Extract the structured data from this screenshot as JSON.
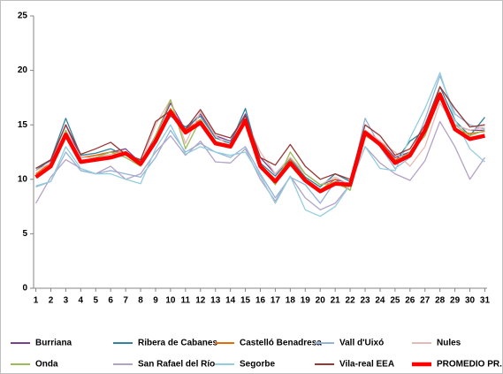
{
  "chart_data": {
    "type": "line",
    "x": [
      1,
      2,
      3,
      4,
      5,
      6,
      7,
      8,
      9,
      10,
      11,
      12,
      13,
      14,
      15,
      16,
      17,
      18,
      19,
      20,
      21,
      22,
      23,
      24,
      25,
      26,
      27,
      28,
      29,
      30,
      31
    ],
    "xlim": [
      0.85,
      31.15
    ],
    "xticks": [
      1,
      2,
      3,
      4,
      5,
      6,
      7,
      8,
      9,
      10,
      11,
      12,
      13,
      14,
      15,
      16,
      17,
      18,
      19,
      20,
      21,
      22,
      23,
      24,
      25,
      26,
      27,
      28,
      29,
      30,
      31
    ],
    "ylim": [
      0,
      25
    ],
    "yticks": [
      0,
      5,
      10,
      15,
      20,
      25
    ],
    "grid": false,
    "legend": "bottom",
    "series": [
      {
        "name": "Burriana",
        "color": "#7b3f8f",
        "width": 1.3,
        "values": [
          11.0,
          11.7,
          15.0,
          12.0,
          12.2,
          12.5,
          12.8,
          11.5,
          14.0,
          17.0,
          14.5,
          16.0,
          14.0,
          13.5,
          16.0,
          12.0,
          10.5,
          12.0,
          10.5,
          9.5,
          10.0,
          9.6,
          14.5,
          13.5,
          12.0,
          12.5,
          14.5,
          18.0,
          15.0,
          14.5,
          14.5
        ]
      },
      {
        "name": "Ribera de Cabanes",
        "color": "#31849b",
        "width": 1.3,
        "values": [
          10.8,
          11.8,
          15.6,
          12.2,
          12.4,
          12.8,
          12.2,
          11.7,
          13.6,
          15.8,
          14.8,
          15.8,
          13.8,
          13.3,
          16.5,
          11.5,
          10.3,
          11.9,
          10.2,
          9.3,
          10.5,
          9.8,
          14.0,
          13.5,
          11.6,
          13.5,
          14.5,
          18.5,
          15.4,
          14.0,
          15.7
        ]
      },
      {
        "name": "Castelló Benadresa",
        "color": "#e46c0a",
        "width": 1.3,
        "values": [
          10.5,
          11.5,
          14.3,
          12.0,
          12.2,
          12.5,
          12.5,
          11.6,
          13.8,
          16.5,
          14.5,
          15.5,
          13.5,
          13.0,
          15.5,
          11.3,
          10.0,
          11.8,
          10.0,
          9.0,
          10.0,
          9.0,
          14.5,
          13.5,
          11.8,
          12.4,
          14.0,
          18.0,
          14.5,
          14.2,
          14.4
        ]
      },
      {
        "name": "Vall d'Uixó",
        "color": "#95b3d7",
        "width": 1.3,
        "values": [
          9.3,
          9.8,
          12.5,
          10.8,
          10.5,
          10.8,
          10.5,
          10.2,
          12.0,
          14.5,
          12.5,
          13.3,
          12.5,
          12.0,
          13.0,
          10.5,
          8.3,
          10.2,
          9.5,
          7.8,
          9.8,
          9.5,
          15.6,
          13.0,
          11.0,
          12.0,
          15.5,
          19.5,
          16.0,
          15.0,
          14.6
        ]
      },
      {
        "name": "Nules",
        "color": "#e6b9b8",
        "width": 1.3,
        "values": [
          10.8,
          11.5,
          14.5,
          12.0,
          12.0,
          12.3,
          12.5,
          11.4,
          15.0,
          17.3,
          13.3,
          16.2,
          14.0,
          13.0,
          15.5,
          12.5,
          10.5,
          12.0,
          10.5,
          9.5,
          10.2,
          9.5,
          14.5,
          13.5,
          12.5,
          11.2,
          13.0,
          17.0,
          15.0,
          14.5,
          14.8
        ]
      },
      {
        "name": "Onda",
        "color": "#9bbb59",
        "width": 1.3,
        "values": [
          10.3,
          11.3,
          14.5,
          11.5,
          12.0,
          12.5,
          12.0,
          11.2,
          14.0,
          17.3,
          12.8,
          15.5,
          13.5,
          13.0,
          15.2,
          11.3,
          9.5,
          12.5,
          10.5,
          9.5,
          9.7,
          9.0,
          14.0,
          13.2,
          11.5,
          12.5,
          14.0,
          17.5,
          15.0,
          14.0,
          14.5
        ]
      },
      {
        "name": "San Rafael del Río",
        "color": "#b3a2c7",
        "width": 1.3,
        "values": [
          7.8,
          10.2,
          11.8,
          11.0,
          10.5,
          11.2,
          10.0,
          10.5,
          12.5,
          14.0,
          12.2,
          13.5,
          11.6,
          11.5,
          12.8,
          10.0,
          8.0,
          10.3,
          8.3,
          7.2,
          7.8,
          9.5,
          13.0,
          11.5,
          10.5,
          9.9,
          11.7,
          15.3,
          13.0,
          10.0,
          12.0
        ]
      },
      {
        "name": "Segorbe",
        "color": "#92cddc",
        "width": 1.3,
        "values": [
          9.4,
          9.8,
          13.0,
          11.0,
          10.5,
          10.5,
          10.0,
          9.6,
          12.8,
          15.0,
          12.3,
          13.0,
          12.5,
          12.2,
          12.5,
          10.3,
          7.8,
          10.3,
          7.2,
          6.6,
          7.5,
          9.5,
          13.0,
          11.0,
          10.8,
          13.8,
          16.5,
          19.8,
          15.5,
          12.8,
          11.6
        ]
      },
      {
        "name": "Vila-real EEA",
        "color": "#953735",
        "width": 1.3,
        "values": [
          11.0,
          11.8,
          15.0,
          12.3,
          12.8,
          13.4,
          12.3,
          11.8,
          15.3,
          16.3,
          14.6,
          16.4,
          14.2,
          13.8,
          15.8,
          12.0,
          11.3,
          13.2,
          11.2,
          10.0,
          10.5,
          10.0,
          15.0,
          14.0,
          12.2,
          12.8,
          15.0,
          18.5,
          16.5,
          14.8,
          15.0
        ]
      },
      {
        "name": "PROMEDIO PR.",
        "color": "#ff0000",
        "width": 4.5,
        "values": [
          10.2,
          11.2,
          14.1,
          11.6,
          11.8,
          12.0,
          12.4,
          11.4,
          13.5,
          16.2,
          14.3,
          15.2,
          13.3,
          13.0,
          15.4,
          11.2,
          9.8,
          11.5,
          9.9,
          8.9,
          9.6,
          9.5,
          14.3,
          13.2,
          11.5,
          12.2,
          14.5,
          17.8,
          14.6,
          13.7,
          14.0
        ]
      }
    ]
  }
}
